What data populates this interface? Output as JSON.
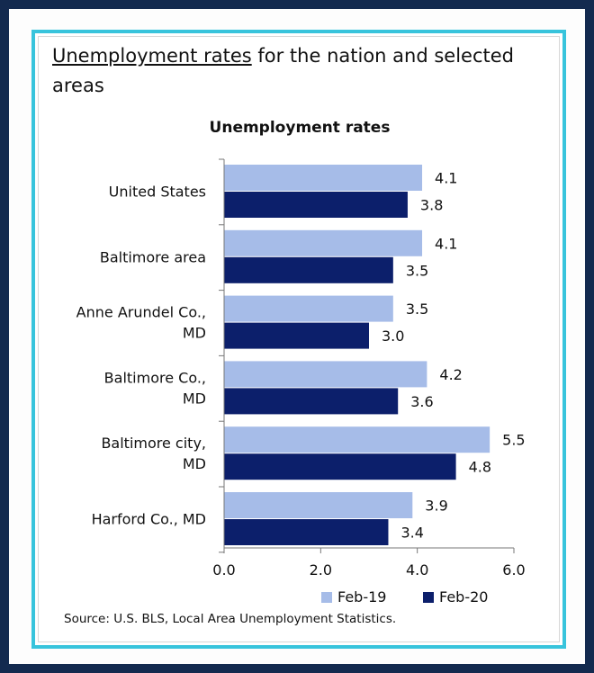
{
  "heading": {
    "underlined": "Unemployment rates",
    "rest": " for the nation and selected areas"
  },
  "source_note": "Source: U.S. BLS, Local Area Unemployment Statistics.",
  "chart_data": {
    "type": "bar",
    "orientation": "horizontal",
    "title": "Unemployment rates",
    "categories": [
      [
        "United States"
      ],
      [
        "Baltimore area"
      ],
      [
        "Anne Arundel Co.,",
        "MD"
      ],
      [
        "Baltimore Co.,",
        "MD"
      ],
      [
        "Baltimore city,",
        "MD"
      ],
      [
        "Harford Co., MD"
      ]
    ],
    "series": [
      {
        "name": "Feb-19",
        "color": "#a6bce8",
        "values": [
          4.1,
          4.1,
          3.5,
          4.2,
          5.5,
          3.9
        ],
        "labels": [
          "4.1",
          "4.1",
          "3.5",
          "4.2",
          "5.5",
          "3.9"
        ]
      },
      {
        "name": "Feb-20",
        "color": "#0c1f6b",
        "values": [
          3.8,
          3.5,
          3.0,
          3.6,
          4.8,
          3.4
        ],
        "labels": [
          "3.8",
          "3.5",
          "3.0",
          "3.6",
          "4.8",
          "3.4"
        ]
      }
    ],
    "xlim": [
      0,
      6
    ],
    "xticks": [
      "0.0",
      "2.0",
      "4.0",
      "6.0"
    ],
    "xtick_values": [
      0,
      2,
      4,
      6
    ],
    "grid": false,
    "legend_position": "bottom-right"
  }
}
